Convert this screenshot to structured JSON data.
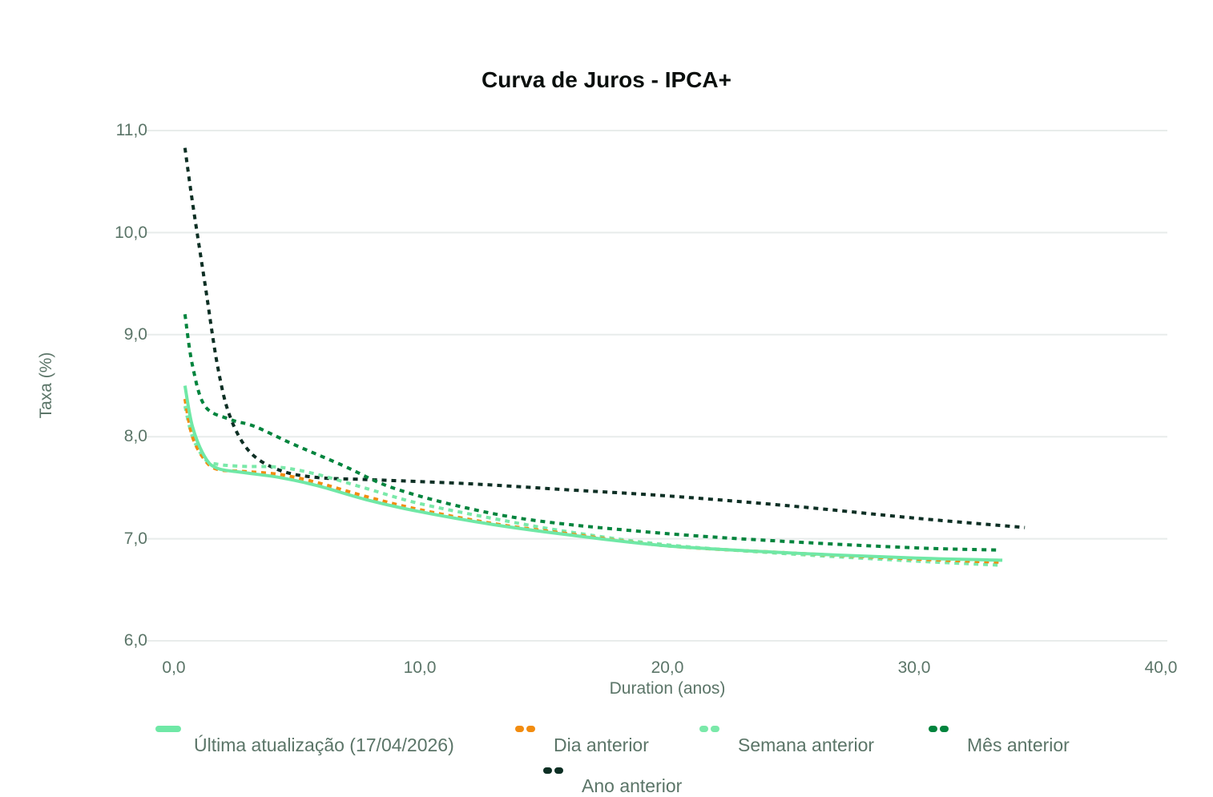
{
  "chart_data": {
    "type": "line",
    "title": "Curva de Juros - IPCA+",
    "xlabel": "Duration (anos)",
    "ylabel": "Taxa (%)",
    "xlim": [
      0,
      40
    ],
    "ylim": [
      6,
      11
    ],
    "x_ticks": [
      "0,0",
      "10,0",
      "20,0",
      "30,0",
      "40,0"
    ],
    "y_ticks": [
      "6,0",
      "7,0",
      "8,0",
      "9,0",
      "10,0",
      "11,0"
    ],
    "grid": "horizontal",
    "legend_position": "bottom",
    "series": [
      {
        "name": "Última atualização (17/04/2026)",
        "color": "#6fe8a6",
        "style": "solid",
        "points": [
          [
            0.7,
            8.5
          ],
          [
            1.0,
            8.1
          ],
          [
            1.5,
            7.8
          ],
          [
            2,
            7.69
          ],
          [
            3,
            7.65
          ],
          [
            4.5,
            7.6
          ],
          [
            6,
            7.52
          ],
          [
            8,
            7.38
          ],
          [
            10,
            7.27
          ],
          [
            13,
            7.14
          ],
          [
            16,
            7.04
          ],
          [
            20,
            6.93
          ],
          [
            25,
            6.86
          ],
          [
            30,
            6.81
          ],
          [
            33.4,
            6.79
          ]
        ]
      },
      {
        "name": "Dia anterior",
        "color": "#f28c0f",
        "style": "dotted",
        "points": [
          [
            0.7,
            8.37
          ],
          [
            1.0,
            8.0
          ],
          [
            1.5,
            7.77
          ],
          [
            2,
            7.68
          ],
          [
            3,
            7.66
          ],
          [
            4.5,
            7.63
          ],
          [
            6,
            7.55
          ],
          [
            8,
            7.41
          ],
          [
            10,
            7.29
          ],
          [
            13,
            7.15
          ],
          [
            16,
            7.05
          ],
          [
            20,
            6.93
          ],
          [
            25,
            6.86
          ],
          [
            30,
            6.8
          ],
          [
            33.4,
            6.77
          ]
        ]
      },
      {
        "name": "Semana anterior",
        "color": "#7ae9a9",
        "style": "dotted",
        "points": [
          [
            0.7,
            8.3
          ],
          [
            1.0,
            8.0
          ],
          [
            1.5,
            7.78
          ],
          [
            2,
            7.73
          ],
          [
            3,
            7.71
          ],
          [
            4.5,
            7.7
          ],
          [
            6,
            7.63
          ],
          [
            8,
            7.49
          ],
          [
            10,
            7.35
          ],
          [
            13,
            7.2
          ],
          [
            16,
            7.07
          ],
          [
            20,
            6.94
          ],
          [
            25,
            6.85
          ],
          [
            30,
            6.78
          ],
          [
            33.4,
            6.74
          ]
        ]
      },
      {
        "name": "Mês anterior",
        "color": "#00843d",
        "style": "dotted",
        "points": [
          [
            0.7,
            9.2
          ],
          [
            1.0,
            8.7
          ],
          [
            1.5,
            8.3
          ],
          [
            2.5,
            8.17
          ],
          [
            3.5,
            8.1
          ],
          [
            5,
            7.93
          ],
          [
            7,
            7.72
          ],
          [
            9,
            7.5
          ],
          [
            12,
            7.3
          ],
          [
            15,
            7.17
          ],
          [
            20,
            7.05
          ],
          [
            25,
            6.97
          ],
          [
            30,
            6.91
          ],
          [
            33.2,
            6.89
          ]
        ]
      },
      {
        "name": "Ano anterior",
        "color": "#0d2f24",
        "style": "dotted",
        "points": [
          [
            0.7,
            10.83
          ],
          [
            1.0,
            10.3
          ],
          [
            1.5,
            9.5
          ],
          [
            2,
            8.7
          ],
          [
            2.5,
            8.2
          ],
          [
            3.3,
            7.85
          ],
          [
            4.5,
            7.67
          ],
          [
            6,
            7.6
          ],
          [
            8,
            7.58
          ],
          [
            12,
            7.54
          ],
          [
            16,
            7.48
          ],
          [
            20,
            7.42
          ],
          [
            25,
            7.32
          ],
          [
            30,
            7.2
          ],
          [
            34.3,
            7.11
          ]
        ]
      }
    ]
  },
  "legend": {
    "items": [
      {
        "label": "Última atualização (17/04/2026)",
        "color": "#6fe8a6",
        "style": "solid"
      },
      {
        "label": "Dia anterior",
        "color": "#f28c0f",
        "style": "dotted"
      },
      {
        "label": "Semana anterior",
        "color": "#7ae9a9",
        "style": "dotted"
      },
      {
        "label": "Mês anterior",
        "color": "#00843d",
        "style": "dotted"
      },
      {
        "label": "Ano anterior",
        "color": "#0d2f24",
        "style": "dotted"
      }
    ]
  }
}
